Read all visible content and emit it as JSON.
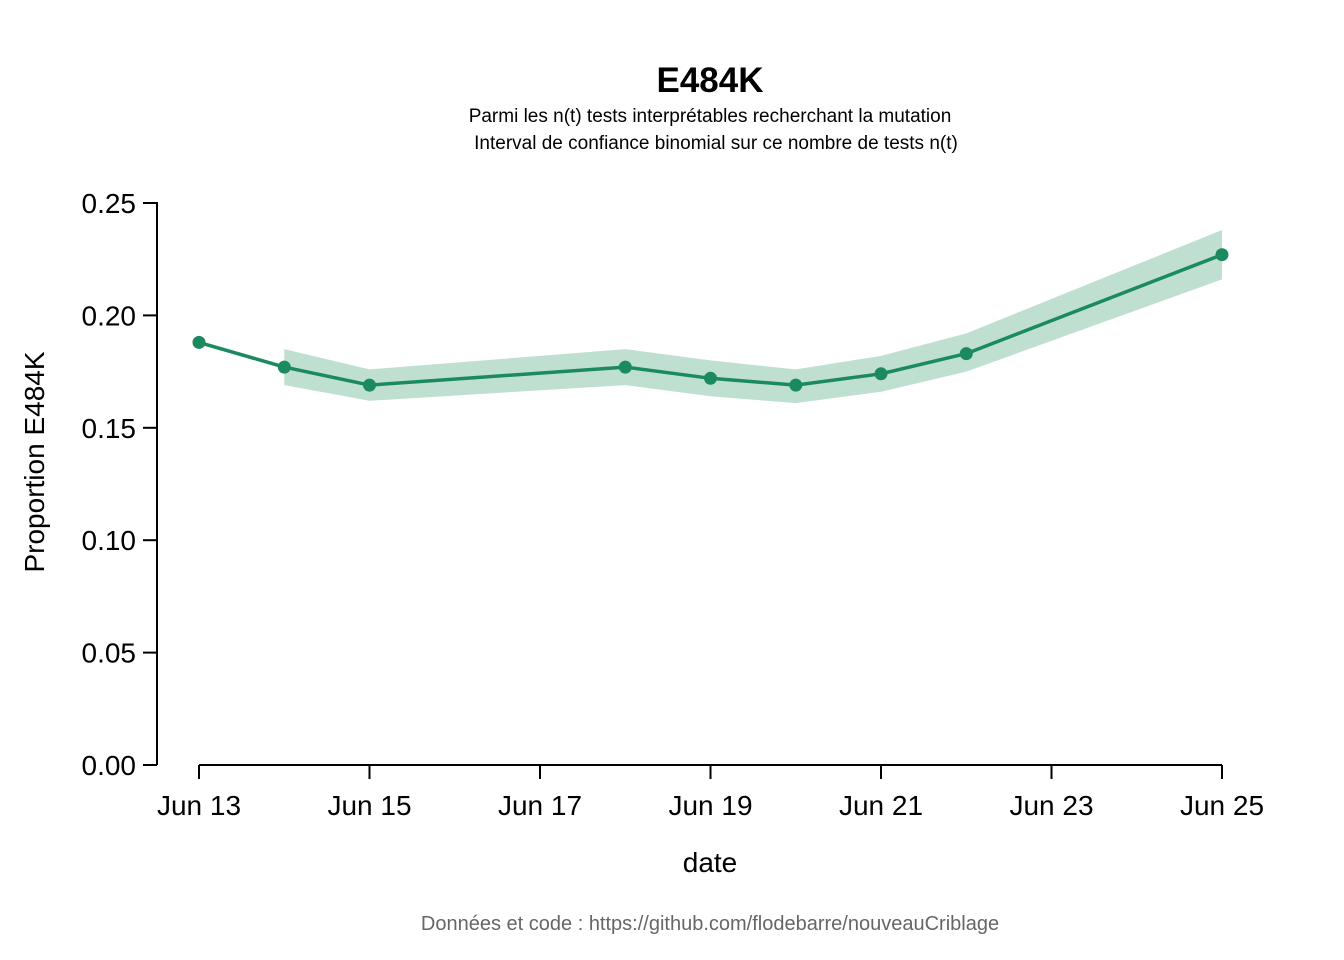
{
  "colors": {
    "line": "#1b8a5f",
    "band": "#bfe0d1",
    "axis": "#000000",
    "caption": "#666666"
  },
  "chart_data": {
    "type": "line",
    "title": "E484K",
    "subtitle_line1": "Parmi les n(t) tests interprétables recherchant la mutation",
    "subtitle_line2": "Interval de confiance binomial sur ce nombre de tests n(t)",
    "xlabel": "date",
    "ylabel": "Proportion E484K",
    "caption": "Données et code : https://github.com/flodebarre/nouveauCriblage",
    "xlim": [
      "2021-06-13",
      "2021-06-25"
    ],
    "ylim": [
      0,
      0.25
    ],
    "x_ticks": [
      "Jun 13",
      "Jun 15",
      "Jun 17",
      "Jun 19",
      "Jun 21",
      "Jun 23",
      "Jun 25"
    ],
    "y_ticks": [
      "0.00",
      "0.05",
      "0.10",
      "0.15",
      "0.20",
      "0.25"
    ],
    "grid": false,
    "series": [
      {
        "x": [
          "2021-06-13",
          "2021-06-14",
          "2021-06-15",
          "2021-06-18",
          "2021-06-19",
          "2021-06-20",
          "2021-06-21",
          "2021-06-22",
          "2021-06-25"
        ],
        "y": [
          0.188,
          0.177,
          0.169,
          0.177,
          0.172,
          0.169,
          0.174,
          0.183,
          0.227
        ]
      }
    ],
    "confidence_band": {
      "x": [
        "2021-06-14",
        "2021-06-15",
        "2021-06-18",
        "2021-06-19",
        "2021-06-20",
        "2021-06-21",
        "2021-06-22",
        "2021-06-25"
      ],
      "lower": [
        0.169,
        0.162,
        0.169,
        0.164,
        0.161,
        0.166,
        0.175,
        0.216
      ],
      "upper": [
        0.185,
        0.176,
        0.185,
        0.18,
        0.176,
        0.182,
        0.192,
        0.238
      ]
    }
  }
}
